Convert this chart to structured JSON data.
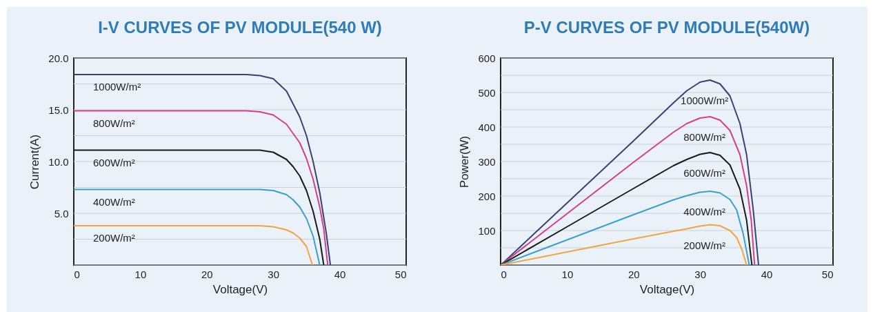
{
  "chart_data": [
    {
      "type": "line",
      "title": "I-V CURVES OF PV MODULE(540 W)",
      "xlabel": "Voltage(V)",
      "ylabel": "Current(A)",
      "xlim": [
        0,
        50
      ],
      "xticks": [
        0,
        10,
        20,
        30,
        40,
        50
      ],
      "ylim": [
        0,
        20
      ],
      "yticks": [
        {
          "value": 0,
          "label": null
        },
        {
          "value": 2.5,
          "label": null
        },
        {
          "value": 5,
          "label": "5.0"
        },
        {
          "value": 7.5,
          "label": null
        },
        {
          "value": 10,
          "label": "10.0"
        },
        {
          "value": 12.5,
          "label": null
        },
        {
          "value": 15,
          "label": "15.0"
        },
        {
          "value": 17.5,
          "label": null
        },
        {
          "value": 20,
          "label": "20.0"
        }
      ],
      "grid": "y",
      "legend": false,
      "series": [
        {
          "name": "1000W/m²",
          "color": "#3b3f78",
          "x": [
            0,
            26,
            28,
            30,
            32,
            34,
            35,
            36,
            37,
            38,
            38.6
          ],
          "values": [
            18.4,
            18.4,
            18.3,
            18.0,
            16.8,
            14.3,
            12.5,
            10.0,
            7.0,
            3.0,
            0
          ]
        },
        {
          "name": "800W/m²",
          "color": "#d63f86",
          "x": [
            0,
            26,
            28,
            30,
            32,
            34,
            35,
            36,
            37,
            37.6,
            38.2
          ],
          "values": [
            14.9,
            14.9,
            14.8,
            14.5,
            13.6,
            11.8,
            10.3,
            8.3,
            5.6,
            3.5,
            0
          ]
        },
        {
          "name": "600W/m²",
          "color": "#1a1a1a",
          "x": [
            0,
            28,
            30,
            32,
            33,
            34,
            35,
            36,
            37,
            37.6
          ],
          "values": [
            11.1,
            11.1,
            10.9,
            10.2,
            9.5,
            8.6,
            7.2,
            5.2,
            2.5,
            0
          ]
        },
        {
          "name": "400W/m²",
          "color": "#3a9fd0",
          "x": [
            0,
            28,
            30,
            32,
            33,
            34,
            35,
            36,
            37
          ],
          "values": [
            7.3,
            7.3,
            7.2,
            6.8,
            6.3,
            5.6,
            4.5,
            2.8,
            0
          ]
        },
        {
          "name": "200W/m²",
          "color": "#f0a540",
          "x": [
            0,
            28,
            30,
            32,
            33,
            34,
            35,
            35.9
          ],
          "values": [
            3.8,
            3.8,
            3.7,
            3.4,
            3.1,
            2.6,
            1.8,
            0
          ]
        }
      ]
    },
    {
      "type": "line",
      "title": "P-V CURVES OF PV MODULE(540W)",
      "xlabel": "Voltage(V)",
      "ylabel": "Power(W)",
      "xlim": [
        0,
        50
      ],
      "xticks": [
        0,
        10,
        20,
        30,
        40,
        50
      ],
      "ylim": [
        0,
        600
      ],
      "yticks": [
        {
          "value": 0,
          "label": null
        },
        {
          "value": 50,
          "label": null
        },
        100,
        {
          "value": 150,
          "label": null
        },
        200,
        {
          "value": 250,
          "label": null
        },
        300,
        {
          "value": 350,
          "label": null
        },
        400,
        {
          "value": 450,
          "label": null
        },
        500,
        {
          "value": 550,
          "label": null
        },
        600
      ],
      "grid": "y",
      "legend": false,
      "series": [
        {
          "name": "1000W/m²",
          "color": "#3b3f78",
          "x": [
            0,
            10,
            20,
            26,
            28,
            30,
            31.5,
            33,
            34.5,
            36,
            37,
            38,
            38.8
          ],
          "values": [
            0,
            180,
            360,
            470,
            505,
            530,
            536,
            525,
            490,
            410,
            320,
            160,
            0
          ]
        },
        {
          "name": "800W/m²",
          "color": "#d63f86",
          "x": [
            0,
            10,
            20,
            26,
            28,
            30,
            31.5,
            33,
            34.5,
            36,
            37,
            37.7,
            38.2
          ],
          "values": [
            0,
            149,
            298,
            385,
            410,
            426,
            430,
            420,
            390,
            320,
            230,
            130,
            0
          ]
        },
        {
          "name": "600W/m²",
          "color": "#1a1a1a",
          "x": [
            0,
            10,
            20,
            26,
            28,
            30,
            31.5,
            33,
            34.5,
            36,
            37,
            37.8
          ],
          "values": [
            0,
            111,
            222,
            288,
            306,
            321,
            326,
            318,
            290,
            220,
            130,
            0
          ]
        },
        {
          "name": "400W/m²",
          "color": "#3a9fd0",
          "x": [
            0,
            10,
            20,
            26,
            28,
            30,
            31.5,
            33,
            34.5,
            35.5,
            36.5,
            37.4
          ],
          "values": [
            0,
            73,
            146,
            189,
            201,
            211,
            214,
            209,
            190,
            160,
            90,
            0
          ]
        },
        {
          "name": "200W/m²",
          "color": "#f0a540",
          "x": [
            0,
            10,
            20,
            26,
            28,
            30,
            31.5,
            33,
            34.5,
            35.5,
            36.3,
            37.0
          ],
          "values": [
            0,
            38,
            76,
            98,
            105,
            113,
            117,
            114,
            100,
            80,
            45,
            0
          ]
        }
      ]
    }
  ]
}
